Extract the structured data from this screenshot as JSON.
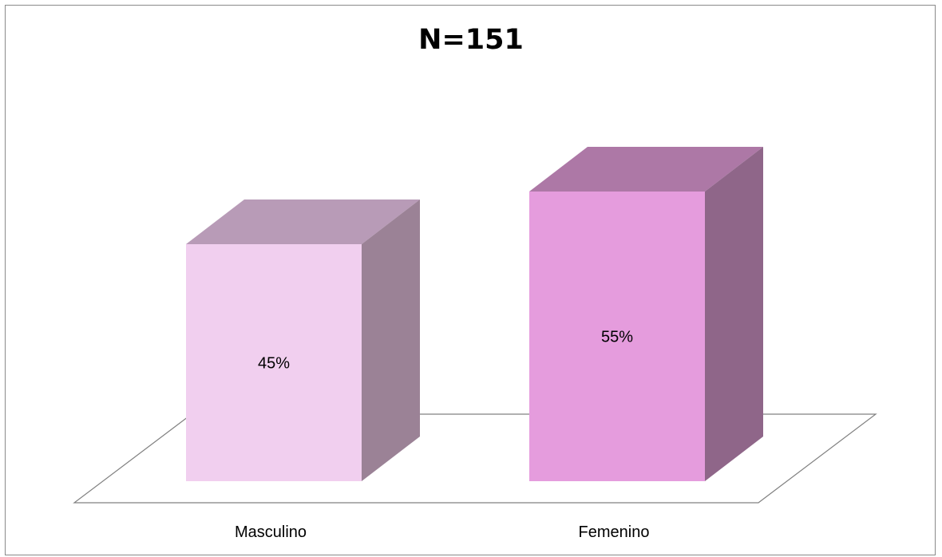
{
  "chart_data": {
    "type": "bar",
    "title": "N=151",
    "categories": [
      "Masculino",
      "Femenino"
    ],
    "values": [
      45,
      55
    ],
    "value_labels": [
      "45%",
      "55%"
    ],
    "unit": "%",
    "ylim": [
      0,
      100
    ],
    "grid": false,
    "legend": "none",
    "three_d": true,
    "colors": {
      "masculino_front": "#f1cfef",
      "masculino_top": "#b89bb7",
      "masculino_side": "#9b8296",
      "femenino_front": "#e59cdd",
      "femenino_top": "#ad78a6",
      "femenino_side": "#8f6689",
      "floor_edge": "#808080"
    }
  }
}
